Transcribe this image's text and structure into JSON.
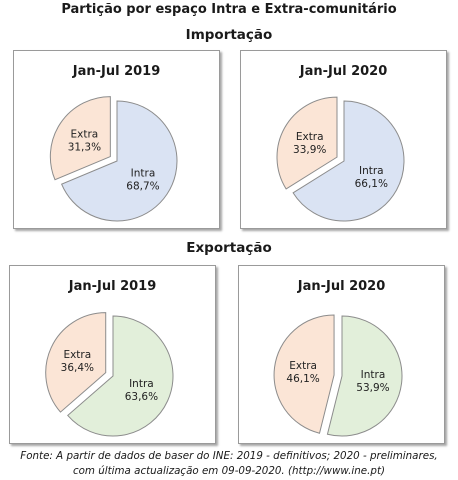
{
  "title": "Partição por espaço Intra e Extra-comunitário",
  "sections": {
    "import": "Importação",
    "export": "Exportação"
  },
  "colors": {
    "import_intra": "#dae3f3",
    "export_intra": "#e2efda",
    "extra": "#fbe5d6",
    "edge": "#8c8c8c"
  },
  "chart_data": [
    {
      "type": "pie",
      "group": "Importação",
      "title": "Jan-Jul 2019",
      "slices": [
        {
          "label": "Intra",
          "value": 68.7,
          "value_label": "68,7%"
        },
        {
          "label": "Extra",
          "value": 31.3,
          "value_label": "31,3%"
        }
      ]
    },
    {
      "type": "pie",
      "group": "Importação",
      "title": "Jan-Jul 2020",
      "slices": [
        {
          "label": "Intra",
          "value": 66.1,
          "value_label": "66,1%"
        },
        {
          "label": "Extra",
          "value": 33.9,
          "value_label": "33,9%"
        }
      ]
    },
    {
      "type": "pie",
      "group": "Exportação",
      "title": "Jan-Jul 2019",
      "slices": [
        {
          "label": "Intra",
          "value": 63.6,
          "value_label": "63,6%"
        },
        {
          "label": "Extra",
          "value": 36.4,
          "value_label": "36,4%"
        }
      ]
    },
    {
      "type": "pie",
      "group": "Exportação",
      "title": "Jan-Jul 2020",
      "slices": [
        {
          "label": "Intra",
          "value": 53.9,
          "value_label": "53,9%"
        },
        {
          "label": "Extra",
          "value": 46.1,
          "value_label": "46,1%"
        }
      ]
    }
  ],
  "footnote": {
    "line1": "Fonte: A partir de dados de baser do INE: 2019 - definitivos; 2020 - preliminares,",
    "line2": "com última actualização em 09-09-2020.   (http://www.ine.pt)"
  }
}
